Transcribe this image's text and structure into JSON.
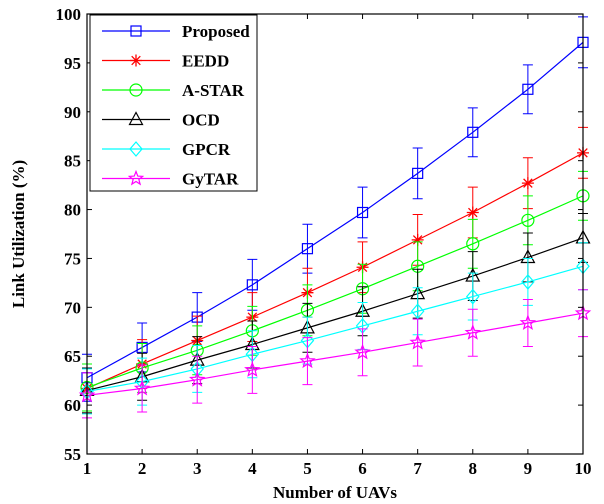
{
  "chart_data": {
    "type": "line",
    "title": "",
    "xlabel": "Number of UAVs",
    "ylabel": "Link Utilization (%)",
    "xlim": [
      1,
      10
    ],
    "ylim": [
      55,
      100
    ],
    "x": [
      1,
      2,
      3,
      4,
      5,
      6,
      7,
      8,
      9,
      10
    ],
    "x_ticks": [
      "1",
      "2",
      "3",
      "4",
      "5",
      "6",
      "7",
      "8",
      "9",
      "10"
    ],
    "y_ticks": [
      "55",
      "60",
      "65",
      "70",
      "75",
      "80",
      "85",
      "90",
      "95",
      "100"
    ],
    "grid": false,
    "legend_position": "top-left",
    "series": [
      {
        "name": "Proposed",
        "color": "#0000ff",
        "marker": "square",
        "values": [
          62.8,
          65.9,
          69.0,
          72.3,
          76.0,
          79.7,
          83.7,
          87.9,
          92.3,
          97.1
        ],
        "errors": [
          2.4,
          2.5,
          2.5,
          2.6,
          2.5,
          2.6,
          2.6,
          2.5,
          2.5,
          2.6
        ]
      },
      {
        "name": "EEDD",
        "color": "#ff0000",
        "marker": "asterisk",
        "values": [
          61.7,
          64.2,
          66.6,
          69.0,
          71.5,
          74.1,
          76.9,
          79.7,
          82.7,
          85.8
        ],
        "errors": [
          2.5,
          2.5,
          2.5,
          2.5,
          2.5,
          2.6,
          2.6,
          2.6,
          2.6,
          2.6
        ]
      },
      {
        "name": "A-STAR",
        "color": "#00ff00",
        "marker": "circle",
        "values": [
          61.8,
          63.8,
          65.6,
          67.6,
          69.7,
          71.9,
          74.2,
          76.5,
          78.9,
          81.4
        ],
        "errors": [
          2.4,
          2.5,
          2.5,
          2.5,
          2.6,
          2.5,
          2.5,
          2.5,
          2.5,
          2.5
        ]
      },
      {
        "name": "OCD",
        "color": "#000000",
        "marker": "triangle",
        "values": [
          61.5,
          62.9,
          64.6,
          66.2,
          67.9,
          69.6,
          71.4,
          73.2,
          75.1,
          77.1
        ],
        "errors": [
          2.3,
          2.4,
          2.4,
          2.4,
          2.5,
          2.5,
          2.5,
          2.5,
          2.5,
          2.5
        ]
      },
      {
        "name": "GPCR",
        "color": "#00ffff",
        "marker": "diamond",
        "values": [
          61.4,
          62.4,
          63.7,
          65.2,
          66.6,
          68.1,
          69.6,
          71.1,
          72.6,
          74.2
        ],
        "errors": [
          2.3,
          2.4,
          2.4,
          2.4,
          2.4,
          2.4,
          2.4,
          2.4,
          2.4,
          2.4
        ]
      },
      {
        "name": "GyTAR",
        "color": "#ff00ff",
        "marker": "star",
        "values": [
          61.0,
          61.7,
          62.6,
          63.6,
          64.5,
          65.4,
          66.4,
          67.4,
          68.4,
          69.4
        ],
        "errors": [
          2.3,
          2.4,
          2.4,
          2.4,
          2.4,
          2.4,
          2.4,
          2.4,
          2.4,
          2.4
        ]
      }
    ]
  }
}
